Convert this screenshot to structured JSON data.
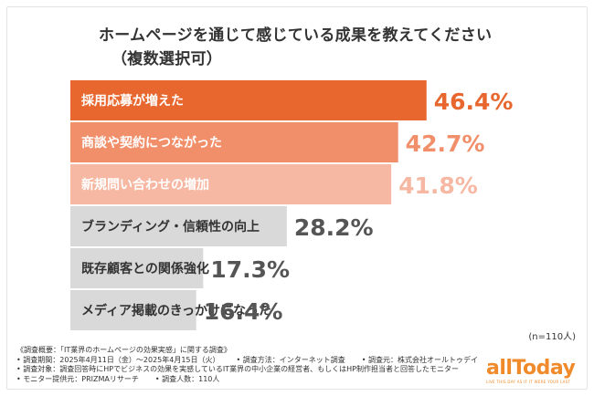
{
  "chart_data": {
    "type": "bar",
    "orientation": "horizontal",
    "title": "ホームページを通じて感じている成果を教えてください",
    "subtitle": "（複数選択可）",
    "categories": [
      "採用応募が増えた",
      "商談や契約につながった",
      "新規問い合わせの増加",
      "ブランディング・信頼性の向上",
      "既存顧客との関係強化",
      "メディア掲載のきっかけになった"
    ],
    "values": [
      46.4,
      42.7,
      41.8,
      28.2,
      17.3,
      16.4
    ],
    "value_labels": [
      "46.4%",
      "42.7%",
      "41.8%",
      "28.2%",
      "17.3%",
      "16.4%"
    ],
    "xlim": [
      0,
      50
    ],
    "grid": false,
    "legend": "none",
    "sample_size": "(n=110人)"
  },
  "colors": {
    "bar_fills": [
      "#e8672f",
      "#f28f6b",
      "#f6b8a3",
      "#d9d9d9",
      "#d9d9d9",
      "#d9d9d9"
    ],
    "label_colors": [
      "#ffffff",
      "#ffffff",
      "#ffffff",
      "#333333",
      "#333333",
      "#333333"
    ],
    "value_colors": [
      "#e8672f",
      "#f28f6b",
      "#f6b8a3",
      "#555555",
      "#555555",
      "#555555"
    ],
    "brand": "#f08a2a"
  },
  "footnotes": {
    "overview": "《調査概要：「IT業界のホームページの効果実感」に関する調査》",
    "period": "• 調査期間：2025年4月11日（金）～2025年4月15日（火）",
    "method": "• 調査方法：インターネット調査",
    "organizer": "• 調査元：株式会社オールトゥデイ",
    "target": "• 調査対象：調査回答時にHPでビジネスの効果を実感しているIT業界の中小企業の経営者、もしくはHP制作担当者と回答したモニター",
    "provider": "• モニター提供元：PRIZMAリサーチ",
    "respondents": "• 調査人数：110人"
  },
  "logo": {
    "name": "allToday",
    "tagline": "LIVE THIS DAY AS IF IT WERE YOUR LAST"
  }
}
